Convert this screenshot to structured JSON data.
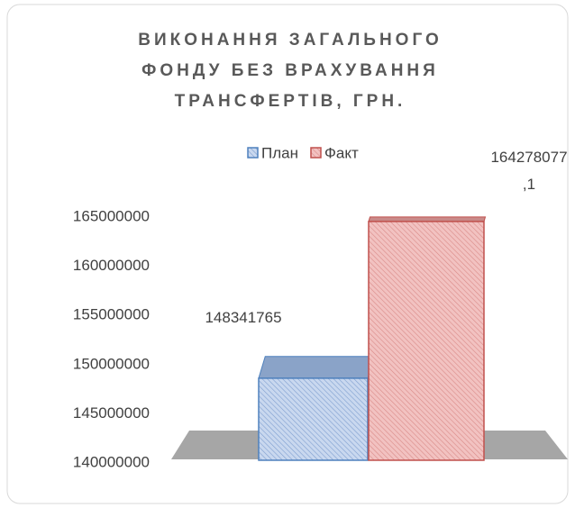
{
  "chart_data": {
    "type": "bar3d",
    "title": [
      "ВИКОНАННЯ ЗАГАЛЬНОГО",
      "ФОНДУ БЕЗ ВРАХУВАННЯ",
      "ТРАНСФЕРТІВ, ГРН."
    ],
    "categories": [
      null
    ],
    "series": [
      {
        "name": "План",
        "color": "#4f81bd",
        "values": [
          148341765
        ],
        "value_labels": [
          "148341765"
        ]
      },
      {
        "name": "Факт",
        "color": "#c0504d",
        "values": [
          164278077.1
        ],
        "value_labels": [
          "164278077,1"
        ]
      }
    ],
    "ylim": [
      140000000,
      165000000
    ],
    "yticks": [
      140000000,
      145000000,
      150000000,
      155000000,
      160000000,
      165000000
    ],
    "legend": "top"
  }
}
